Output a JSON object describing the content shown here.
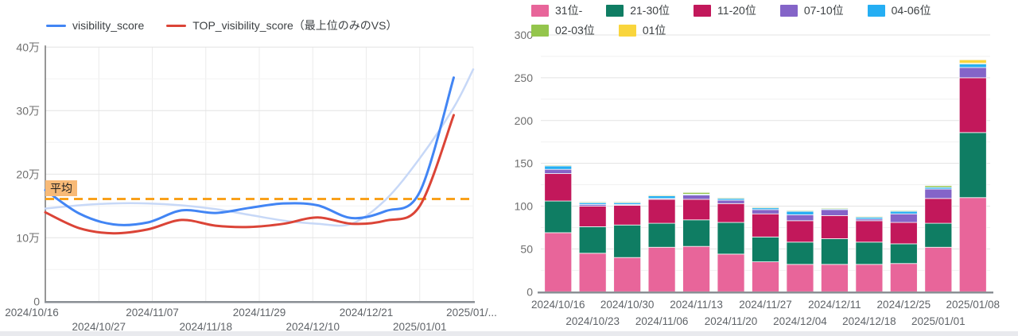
{
  "page": {
    "background": "#ffffff",
    "bottom_strip_color": "#e9eaee"
  },
  "chart_data": [
    {
      "type": "line",
      "legend": [
        {
          "label": "visibility_score",
          "color": "#4285F4"
        },
        {
          "label": "TOP_visibility_score（最上位のみのVS）",
          "color": "#DB4437"
        }
      ],
      "ylim": [
        0,
        400000
      ],
      "y_ticks": [
        {
          "value": 0,
          "label": "0"
        },
        {
          "value": 100000,
          "label": "10万"
        },
        {
          "value": 200000,
          "label": "20万"
        },
        {
          "value": 300000,
          "label": "30万"
        },
        {
          "value": 400000,
          "label": "40万"
        }
      ],
      "xlim_days": [
        0,
        88
      ],
      "x_ticks": [
        {
          "day": 0,
          "label": "2024/10/16",
          "row": 1
        },
        {
          "day": 11,
          "label": "2024/10/27",
          "row": 2
        },
        {
          "day": 22,
          "label": "2024/11/07",
          "row": 1
        },
        {
          "day": 33,
          "label": "2024/11/18",
          "row": 2
        },
        {
          "day": 44,
          "label": "2024/11/29",
          "row": 1
        },
        {
          "day": 55,
          "label": "2024/12/10",
          "row": 2
        },
        {
          "day": 66,
          "label": "2024/12/21",
          "row": 1
        },
        {
          "day": 77,
          "label": "2025/01/01",
          "row": 2
        },
        {
          "day": 88,
          "label": "2025/01/...",
          "row": 1
        }
      ],
      "x_dates_weekly": [
        "2024/10/16",
        "2024/10/23",
        "2024/10/30",
        "2024/11/06",
        "2024/11/13",
        "2024/11/20",
        "2024/11/27",
        "2024/12/04",
        "2024/12/11",
        "2024/12/18",
        "2024/12/25",
        "2025/01/01",
        "2025/01/08"
      ],
      "series": [
        {
          "name": "trend_curve",
          "color": "#c7d8f7",
          "width": 2.5,
          "in_legend": false,
          "days": [
            0,
            7,
            14,
            21,
            28,
            35,
            42,
            49,
            56,
            63,
            70,
            77,
            84,
            88
          ],
          "values": [
            146000,
            151000,
            154000,
            154000,
            151000,
            145000,
            136000,
            127000,
            122000,
            122000,
            160000,
            225000,
            305000,
            365000
          ]
        },
        {
          "name": "TOP_visibility_score（最上位のみのVS）",
          "color": "#DB4437",
          "width": 3,
          "in_legend": true,
          "days": [
            0,
            7,
            14,
            21,
            28,
            35,
            42,
            49,
            56,
            63,
            70,
            77,
            84
          ],
          "values": [
            140000,
            115000,
            107000,
            113000,
            128000,
            119000,
            117000,
            122000,
            132000,
            122000,
            127000,
            150000,
            293000
          ]
        },
        {
          "name": "visibility_score",
          "color": "#4285F4",
          "width": 3,
          "in_legend": true,
          "days": [
            0,
            7,
            14,
            21,
            28,
            35,
            42,
            49,
            56,
            63,
            70,
            77,
            84
          ],
          "values": [
            175000,
            138000,
            121000,
            124000,
            143000,
            139000,
            147000,
            154000,
            151000,
            131000,
            142000,
            172000,
            352000
          ]
        }
      ],
      "average_line": {
        "label": "平均",
        "value": 161000,
        "color": "#f9a11b"
      }
    },
    {
      "type": "stacked-bar",
      "categories": [
        "2024/10/16",
        "2024/10/23",
        "2024/10/30",
        "2024/11/06",
        "2024/11/13",
        "2024/11/20",
        "2024/11/27",
        "2024/12/04",
        "2024/12/11",
        "2024/12/18",
        "2024/12/25",
        "2025/01/01",
        "2025/01/08"
      ],
      "ylim": [
        0,
        300
      ],
      "y_ticks": [
        0,
        50,
        100,
        150,
        200,
        250,
        300
      ],
      "grid_minor_step": 25,
      "series": [
        {
          "name": "31位-",
          "color": "#e8659a",
          "values": [
            69,
            45,
            40,
            52,
            53,
            44,
            35,
            32,
            32,
            32,
            33,
            52,
            110
          ]
        },
        {
          "name": "21-30位",
          "color": "#0f7d63",
          "values": [
            37,
            31,
            38,
            28,
            31,
            37,
            29,
            26,
            30,
            26,
            23,
            28,
            76
          ]
        },
        {
          "name": "11-20位",
          "color": "#c2185b",
          "values": [
            32,
            24,
            23,
            28,
            24,
            22,
            27,
            25,
            27,
            25,
            25,
            29,
            64
          ]
        },
        {
          "name": "07-10位",
          "color": "#8464c8",
          "values": [
            5,
            2,
            1,
            1,
            5,
            4,
            5,
            7,
            7,
            2,
            10,
            11,
            12
          ]
        },
        {
          "name": "04-06位",
          "color": "#25aef3",
          "values": [
            4,
            2,
            2,
            3,
            1,
            2,
            2,
            4,
            1,
            2,
            3,
            2,
            4
          ]
        },
        {
          "name": "02-03位",
          "color": "#94c54c",
          "values": [
            1,
            1,
            1,
            1,
            2,
            1,
            1,
            1,
            1,
            1,
            1,
            2,
            1
          ]
        },
        {
          "name": "01位",
          "color": "#f9d53c",
          "values": [
            0,
            0,
            0,
            0,
            0,
            0,
            0,
            0,
            0,
            0,
            0,
            0,
            4
          ]
        }
      ]
    }
  ]
}
